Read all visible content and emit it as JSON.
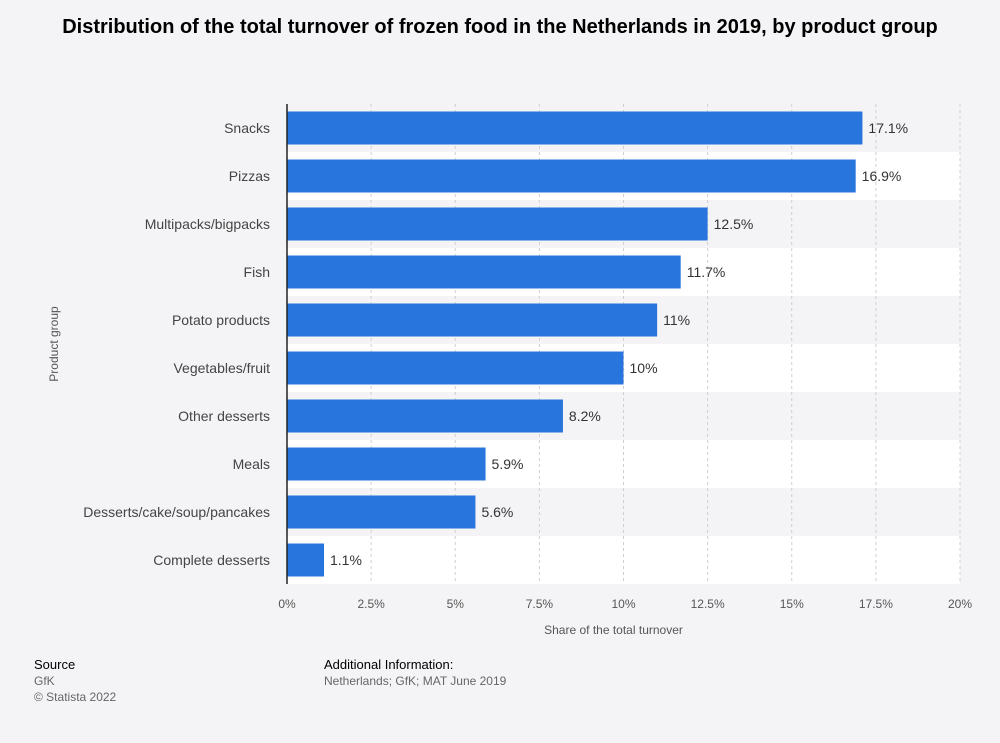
{
  "chart_data": {
    "type": "bar",
    "orientation": "horizontal",
    "title": "Distribution of the total turnover of frozen food in the Netherlands in 2019, by product group",
    "xlabel": "Share of the total turnover",
    "ylabel": "Product group",
    "categories": [
      "Snacks",
      "Pizzas",
      "Multipacks/bigpacks",
      "Fish",
      "Potato products",
      "Vegetables/fruit",
      "Other desserts",
      "Meals",
      "Desserts/cake/soup/pancakes",
      "Complete desserts"
    ],
    "values": [
      17.1,
      16.9,
      12.5,
      11.7,
      11,
      10,
      8.2,
      5.9,
      5.6,
      1.1
    ],
    "value_labels": [
      "17.1%",
      "16.9%",
      "12.5%",
      "11.7%",
      "11%",
      "10%",
      "8.2%",
      "5.9%",
      "5.6%",
      "1.1%"
    ],
    "xlim": [
      0,
      20
    ],
    "ticks": [
      0,
      2.5,
      5,
      7.5,
      10,
      12.5,
      15,
      17.5,
      20
    ],
    "tick_labels": [
      "0%",
      "2.5%",
      "5%",
      "7.5%",
      "10%",
      "12.5%",
      "15%",
      "17.5%",
      "20%"
    ],
    "grid": true,
    "bar_color": "#2876dd"
  },
  "footer": {
    "source_heading": "Source",
    "source_name": "GfK",
    "copyright": "© Statista 2022",
    "additional_heading": "Additional Information:",
    "additional_text": "Netherlands; GfK; MAT June 2019"
  }
}
